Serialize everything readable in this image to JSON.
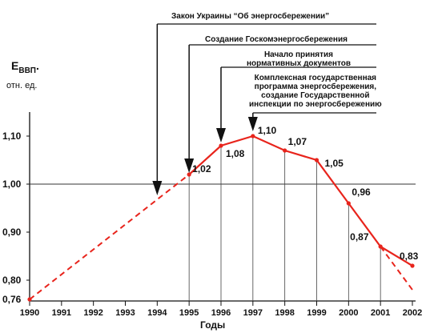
{
  "y_axis": {
    "label_main": "E",
    "label_sub": "ВВП",
    "label_dot": ".",
    "unit": "отн. ед."
  },
  "x_axis": {
    "label": "Годы"
  },
  "annotations": [
    {
      "year": 1994,
      "text": "Закон Украины “Об энергосбережении”"
    },
    {
      "year": 1995,
      "text": "Создание Госкомэнергосбережения"
    },
    {
      "year": 1996,
      "text": "Начало принятия\nнормативных документов"
    },
    {
      "year": 1997,
      "text": "Комплексная государственная\nпрограмма энергосбережения,\nсоздание Государственной\nинспекции по энергосбережению"
    }
  ],
  "chart_data": {
    "type": "line",
    "title": "",
    "xlabel": "Годы",
    "ylabel": "EВВП. отн. ед.",
    "x": [
      1990,
      1991,
      1992,
      1993,
      1994,
      1995,
      1996,
      1997,
      1998,
      1999,
      2000,
      2001,
      2002
    ],
    "xlim": [
      1990,
      2002
    ],
    "ylim": [
      0.76,
      1.16
    ],
    "y_ticks": [
      "0,80",
      "0,90",
      "1,00",
      "1,10"
    ],
    "y_tick_values": [
      0.8,
      0.9,
      1.0,
      1.1
    ],
    "reference_line": 1.0,
    "line_color": "#e8241c",
    "series": [
      {
        "points": [
          {
            "x": 1995,
            "y": 1.02,
            "label": "1,02"
          },
          {
            "x": 1996,
            "y": 1.08,
            "label": "1,08"
          },
          {
            "x": 1997,
            "y": 1.1,
            "label": "1,10"
          },
          {
            "x": 1998,
            "y": 1.07,
            "label": "1,07"
          },
          {
            "x": 1999,
            "y": 1.05,
            "label": "1,05"
          },
          {
            "x": 2000,
            "y": 0.96,
            "label": "0,96"
          },
          {
            "x": 2001,
            "y": 0.87,
            "label": "0,87"
          },
          {
            "x": 2002,
            "y": 0.83,
            "label": "0,83"
          }
        ],
        "style": "solid"
      },
      {
        "points": [
          {
            "x": 1990,
            "y": 0.76,
            "label": "0,76"
          },
          {
            "x": 1995,
            "y": 1.02
          }
        ],
        "style": "dashed"
      },
      {
        "points": [
          {
            "x": 2001,
            "y": 0.87
          },
          {
            "x": 2002,
            "y": 0.78
          }
        ],
        "style": "dashed"
      }
    ]
  }
}
